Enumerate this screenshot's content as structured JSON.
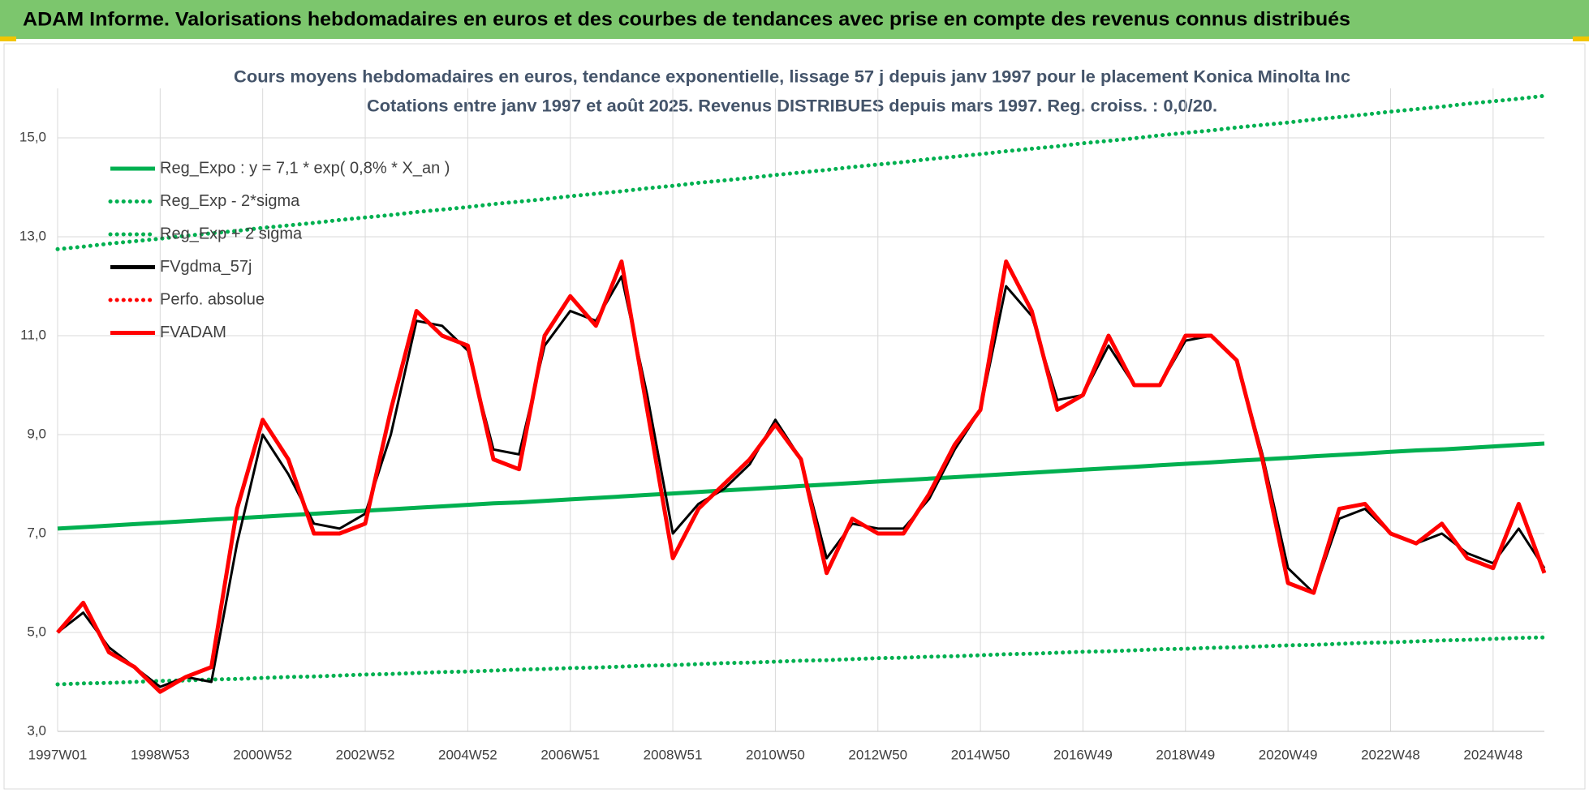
{
  "header": {
    "title": "ADAM Informe. Valorisations hebdomadaires en euros et des courbes de tendances avec prise en compte des revenus connus distribués"
  },
  "chart_data": {
    "type": "line",
    "title": "Cours moyens hebdomadaires en euros, tendance exponentielle, lissage 57 j depuis janv 1997 pour le placement Konica Minolta Inc",
    "subtitle": "Cotations entre janv 1997 et août 2025.  Revenus DISTRIBUES depuis mars 1997. Reg. croiss. : 0,0/20.",
    "categories": [
      "1997W01",
      null,
      null,
      null,
      "1998W53",
      null,
      null,
      null,
      "2000W52",
      null,
      null,
      null,
      "2002W52",
      null,
      null,
      null,
      "2004W52",
      null,
      null,
      null,
      "2006W51",
      null,
      null,
      null,
      "2008W51",
      null,
      null,
      null,
      "2010W50",
      null,
      null,
      null,
      "2012W50",
      null,
      null,
      null,
      "2014W50",
      null,
      null,
      null,
      "2016W49",
      null,
      null,
      null,
      "2018W49",
      null,
      null,
      null,
      "2020W49",
      null,
      null,
      null,
      "2022W48",
      null,
      null,
      null,
      "2024W48",
      null,
      null
    ],
    "ylim": [
      3,
      16
    ],
    "yticks": [
      {
        "value": 3,
        "label": "3,0"
      },
      {
        "value": 5,
        "label": "5,0"
      },
      {
        "value": 7,
        "label": "7,0"
      },
      {
        "value": 9,
        "label": "9,0"
      },
      {
        "value": 11,
        "label": "11,0"
      },
      {
        "value": 13,
        "label": "13,0"
      },
      {
        "value": 15,
        "label": "15,0"
      }
    ],
    "grid": true,
    "legend": "upper left",
    "series": [
      {
        "name": "Reg_Expo : y = 7,1 * exp( 0,8% *  X_an )",
        "color": "#00b050",
        "style": "solid",
        "values": [
          7.1,
          7.13,
          7.16,
          7.19,
          7.22,
          7.25,
          7.28,
          7.31,
          7.34,
          7.37,
          7.4,
          7.43,
          7.46,
          7.49,
          7.52,
          7.55,
          7.58,
          7.61,
          7.63,
          7.66,
          7.69,
          7.72,
          7.75,
          7.78,
          7.81,
          7.84,
          7.87,
          7.9,
          7.93,
          7.96,
          7.99,
          8.02,
          8.05,
          8.08,
          8.11,
          8.14,
          8.17,
          8.2,
          8.23,
          8.26,
          8.29,
          8.32,
          8.35,
          8.38,
          8.41,
          8.44,
          8.47,
          8.5,
          8.53,
          8.56,
          8.59,
          8.62,
          8.65,
          8.68,
          8.7,
          8.73,
          8.76,
          8.79,
          8.82
        ]
      },
      {
        "name": "Reg_Exp - 2*sigma",
        "color": "#00b050",
        "style": "dotted",
        "values": [
          3.95,
          3.97,
          3.98,
          4.0,
          4.02,
          4.03,
          4.05,
          4.06,
          4.08,
          4.1,
          4.11,
          4.13,
          4.15,
          4.16,
          4.18,
          4.2,
          4.21,
          4.23,
          4.25,
          4.26,
          4.28,
          4.29,
          4.31,
          4.33,
          4.34,
          4.36,
          4.38,
          4.39,
          4.41,
          4.43,
          4.44,
          4.46,
          4.48,
          4.49,
          4.51,
          4.52,
          4.54,
          4.56,
          4.57,
          4.59,
          4.61,
          4.62,
          4.64,
          4.66,
          4.67,
          4.69,
          4.7,
          4.72,
          4.74,
          4.75,
          4.77,
          4.79,
          4.8,
          4.82,
          4.84,
          4.85,
          4.87,
          4.89,
          4.9
        ]
      },
      {
        "name": "Reg_Exp + 2 sigma",
        "color": "#00b050",
        "style": "dotted",
        "values": [
          12.75,
          12.8,
          12.86,
          12.91,
          12.96,
          13.02,
          13.07,
          13.12,
          13.18,
          13.23,
          13.28,
          13.34,
          13.39,
          13.44,
          13.5,
          13.55,
          13.6,
          13.66,
          13.71,
          13.76,
          13.82,
          13.87,
          13.92,
          13.98,
          14.03,
          14.09,
          14.14,
          14.19,
          14.25,
          14.3,
          14.35,
          14.41,
          14.46,
          14.51,
          14.57,
          14.62,
          14.67,
          14.73,
          14.78,
          14.83,
          14.89,
          14.94,
          14.99,
          15.05,
          15.1,
          15.15,
          15.21,
          15.26,
          15.31,
          15.37,
          15.42,
          15.47,
          15.53,
          15.58,
          15.63,
          15.69,
          15.74,
          15.79,
          15.85
        ]
      },
      {
        "name": "FVgdma_57j",
        "color": "#000000",
        "style": "solid",
        "values": [
          5.0,
          5.4,
          4.7,
          4.3,
          3.9,
          4.1,
          4.0,
          6.8,
          9.0,
          8.2,
          7.2,
          7.1,
          7.4,
          9.0,
          11.3,
          11.2,
          10.7,
          8.7,
          8.6,
          10.8,
          11.5,
          11.3,
          12.2,
          9.8,
          7.0,
          7.6,
          7.9,
          8.4,
          9.3,
          8.5,
          6.5,
          7.2,
          7.1,
          7.1,
          7.7,
          8.7,
          9.5,
          12.0,
          11.4,
          9.7,
          9.8,
          10.8,
          10.0,
          10.0,
          10.9,
          11.0,
          10.5,
          8.6,
          6.3,
          5.8,
          7.3,
          7.5,
          7.0,
          6.8,
          7.0,
          6.6,
          6.4,
          7.1,
          6.3
        ]
      },
      {
        "name": "Perfo. absolue",
        "color": "#ff0000",
        "style": "dotted",
        "values": [
          null,
          null,
          null,
          null,
          null,
          null,
          null,
          null,
          null,
          null,
          null,
          null,
          null,
          null,
          null,
          null,
          null,
          null,
          null,
          null,
          null,
          null,
          null,
          null,
          null,
          null,
          null,
          null,
          null,
          null,
          null,
          null,
          null,
          null,
          null,
          null,
          null,
          null,
          null,
          null,
          null,
          null,
          null,
          null,
          null,
          null,
          null,
          null,
          null,
          null,
          null,
          null,
          null,
          null,
          null,
          null,
          null,
          null,
          null
        ]
      },
      {
        "name": "FVADAM",
        "color": "#ff0000",
        "style": "solid",
        "values": [
          5.0,
          5.6,
          4.6,
          4.3,
          3.8,
          4.1,
          4.3,
          7.5,
          9.3,
          8.5,
          7.0,
          7.0,
          7.2,
          9.5,
          11.5,
          11.0,
          10.8,
          8.5,
          8.3,
          11.0,
          11.8,
          11.2,
          12.5,
          9.5,
          6.5,
          7.5,
          8.0,
          8.5,
          9.2,
          8.5,
          6.2,
          7.3,
          7.0,
          7.0,
          7.8,
          8.8,
          9.5,
          12.5,
          11.5,
          9.5,
          9.8,
          11.0,
          10.0,
          10.0,
          11.0,
          11.0,
          10.5,
          8.5,
          6.0,
          5.8,
          7.5,
          7.6,
          7.0,
          6.8,
          7.2,
          6.5,
          6.3,
          7.6,
          6.2
        ]
      }
    ]
  }
}
